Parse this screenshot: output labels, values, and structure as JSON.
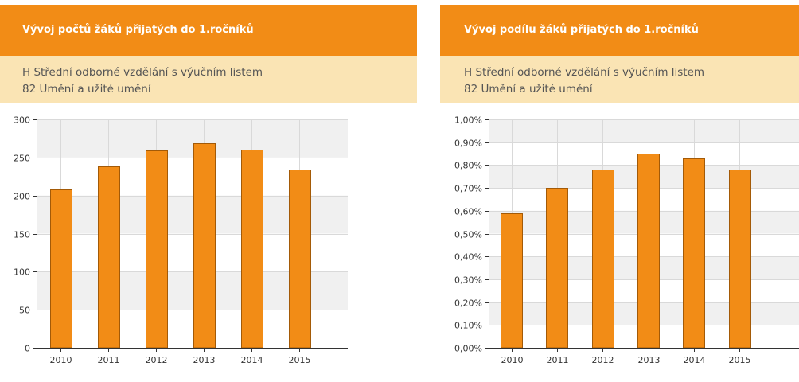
{
  "left_panel": {
    "title": "Vývoj počtů žáků přijatých do 1.ročníků",
    "subtitle_line1": "H Střední odborné vzdělání s výučním listem",
    "subtitle_line2": "82 Umění a užité umění"
  },
  "right_panel": {
    "title": "Vývoj podílu žáků přijatých do 1.ročníků",
    "subtitle_line1": "H Střední odborné vzdělání s výučním listem",
    "subtitle_line2": "82 Umění a užité umění"
  },
  "colors": {
    "header_bg": "#f28c16",
    "subheader_bg": "#fae4b4",
    "bar_fill": "#f28c16",
    "bar_stroke": "#a35a07",
    "band_gray": "#f0f0f0",
    "grid": "#d9d9d9"
  },
  "chart_data": [
    {
      "type": "bar",
      "categories": [
        "2010",
        "2011",
        "2012",
        "2013",
        "2014",
        "2015"
      ],
      "values": [
        208,
        238,
        259,
        269,
        260,
        234
      ],
      "title": "",
      "xlabel": "",
      "ylabel": "",
      "ylim": [
        0,
        300
      ],
      "yticks": [
        0,
        50,
        100,
        150,
        200,
        250,
        300
      ],
      "ytick_labels": [
        "0",
        "50",
        "100",
        "150",
        "200",
        "250",
        "300"
      ],
      "grid": true,
      "legend": "none"
    },
    {
      "type": "bar",
      "categories": [
        "2010",
        "2011",
        "2012",
        "2013",
        "2014",
        "2015"
      ],
      "values": [
        0.0059,
        0.007,
        0.0078,
        0.0085,
        0.0083,
        0.0078
      ],
      "title": "",
      "xlabel": "",
      "ylabel": "",
      "ylim": [
        0,
        0.01
      ],
      "yticks": [
        0,
        0.001,
        0.002,
        0.003,
        0.004,
        0.005,
        0.006,
        0.007,
        0.008,
        0.009,
        0.01
      ],
      "ytick_labels": [
        "0,00%",
        "0,10%",
        "0,20%",
        "0,30%",
        "0,40%",
        "0,50%",
        "0,60%",
        "0,70%",
        "0,80%",
        "0,90%",
        "1,00%"
      ],
      "grid": true,
      "legend": "none"
    }
  ]
}
